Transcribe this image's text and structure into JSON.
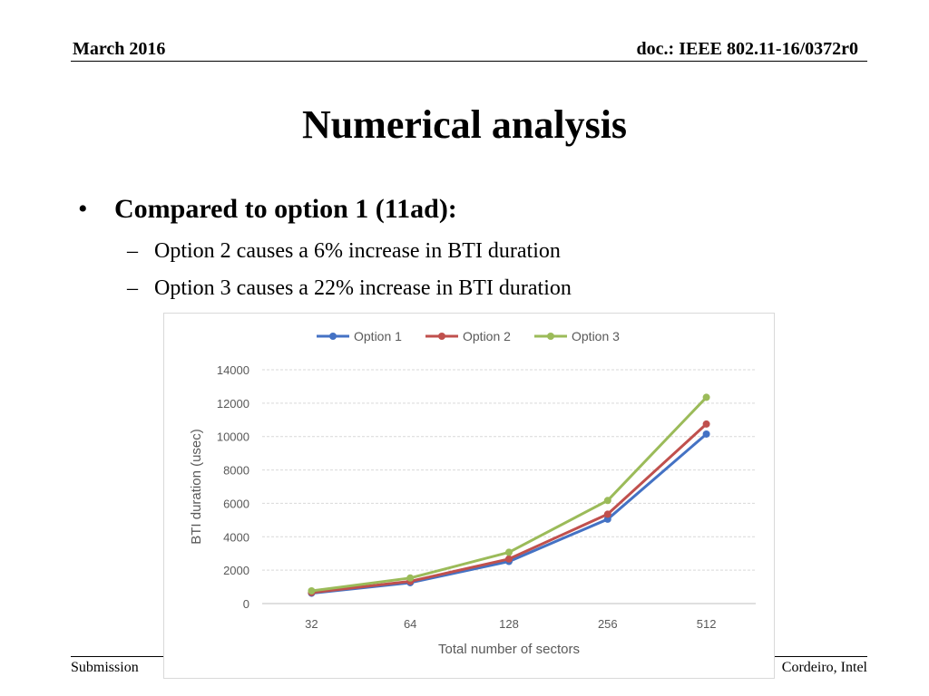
{
  "header": {
    "left": "March 2016",
    "right": "doc.: IEEE 802.11-16/0372r0"
  },
  "title": "Numerical analysis",
  "bullet": {
    "marker": "•",
    "text": "Compared to option 1 (11ad):",
    "sub_marker": "–",
    "subitems": [
      "Option 2 causes a 6% increase in BTI duration",
      "Option 3 causes a 22% increase in BTI duration"
    ]
  },
  "footer": {
    "left": "Submission",
    "right": "Cordeiro, Intel"
  },
  "chart_data": {
    "type": "line",
    "xlabel": "Total number of sectors",
    "ylabel": "BTI duration (usec)",
    "categories": [
      "32",
      "64",
      "128",
      "256",
      "512"
    ],
    "ylim": [
      0,
      14000
    ],
    "yticks": [
      0,
      2000,
      4000,
      6000,
      8000,
      10000,
      12000,
      14000
    ],
    "grid": true,
    "legend_position": "top",
    "series": [
      {
        "name": "Option 1",
        "color": "#4472c4",
        "values": [
          620,
          1250,
          2520,
          5050,
          10150
        ]
      },
      {
        "name": "Option 2",
        "color": "#c0504d",
        "values": [
          660,
          1330,
          2670,
          5350,
          10750
        ]
      },
      {
        "name": "Option 3",
        "color": "#9bbb59",
        "values": [
          760,
          1530,
          3070,
          6170,
          12350
        ]
      }
    ]
  }
}
